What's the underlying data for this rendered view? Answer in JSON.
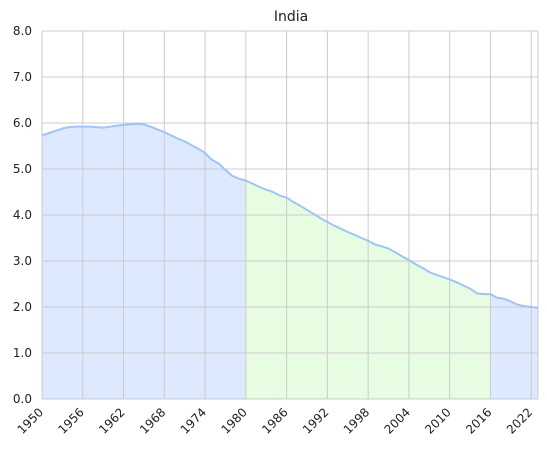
{
  "chart_data": {
    "type": "area",
    "title": "India",
    "xlabel": "",
    "ylabel": "",
    "xlim": [
      1950,
      2023
    ],
    "ylim": [
      0,
      8
    ],
    "grid": true,
    "x_ticks": [
      1950,
      1956,
      1962,
      1968,
      1974,
      1980,
      1986,
      1992,
      1998,
      2004,
      2010,
      2016,
      2022
    ],
    "y_ticks": [
      "0.0",
      "1.0",
      "2.0",
      "3.0",
      "4.0",
      "5.0",
      "6.0",
      "7.0",
      "8.0"
    ],
    "line_color": "#a1c4f7",
    "highlight_ranges": [
      {
        "from": 1950,
        "to": 1980,
        "color": "#dce9fe"
      },
      {
        "from": 1980,
        "to": 2016,
        "color": "#e6fde2"
      },
      {
        "from": 2016,
        "to": 2023,
        "color": "#dce9fe"
      }
    ],
    "series": [
      {
        "x": [
          1950,
          1951,
          1952,
          1953,
          1954,
          1955,
          1956,
          1957,
          1958,
          1959,
          1960,
          1961,
          1962,
          1963,
          1964,
          1965,
          1966,
          1967,
          1968,
          1969,
          1970,
          1971,
          1972,
          1973,
          1974,
          1975,
          1976,
          1977,
          1978,
          1979,
          1980,
          1981,
          1982,
          1983,
          1984,
          1985,
          1986,
          1987,
          1988,
          1989,
          1990,
          1991,
          1992,
          1993,
          1994,
          1995,
          1996,
          1997,
          1998,
          1999,
          2000,
          2001,
          2002,
          2003,
          2004,
          2005,
          2006,
          2007,
          2008,
          2009,
          2010,
          2011,
          2012,
          2013,
          2014,
          2015,
          2016,
          2017,
          2018,
          2019,
          2020,
          2021,
          2022,
          2023
        ],
        "values": [
          5.73,
          5.78,
          5.83,
          5.88,
          5.91,
          5.92,
          5.92,
          5.92,
          5.91,
          5.9,
          5.92,
          5.94,
          5.96,
          5.97,
          5.98,
          5.97,
          5.92,
          5.86,
          5.8,
          5.73,
          5.66,
          5.6,
          5.52,
          5.44,
          5.35,
          5.2,
          5.12,
          4.98,
          4.85,
          4.79,
          4.75,
          4.68,
          4.61,
          4.55,
          4.5,
          4.42,
          4.38,
          4.28,
          4.2,
          4.11,
          4.02,
          3.93,
          3.85,
          3.77,
          3.7,
          3.63,
          3.57,
          3.5,
          3.44,
          3.36,
          3.32,
          3.27,
          3.19,
          3.1,
          3.02,
          2.93,
          2.85,
          2.76,
          2.7,
          2.65,
          2.6,
          2.54,
          2.47,
          2.4,
          2.3,
          2.28,
          2.28,
          2.2,
          2.18,
          2.12,
          2.05,
          2.02,
          2.0,
          1.98
        ]
      }
    ]
  }
}
